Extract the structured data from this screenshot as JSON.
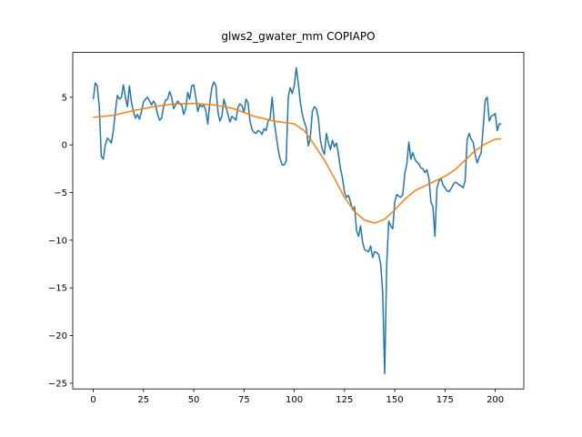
{
  "chart_data": {
    "type": "line",
    "title": "glws2_gwater_mm COPIAPO",
    "xlim": [
      -10.2,
      214.2
    ],
    "ylim": [
      -25.6,
      9.7
    ],
    "xticks": [
      0,
      25,
      50,
      75,
      100,
      125,
      150,
      175,
      200
    ],
    "yticks": [
      {
        "value": -25,
        "label": "−25"
      },
      {
        "value": -20,
        "label": "−20"
      },
      {
        "value": -15,
        "label": "−15"
      },
      {
        "value": -10,
        "label": "−10"
      },
      {
        "value": -5,
        "label": "−5"
      },
      0,
      5
    ],
    "series": [
      {
        "color": "#1f77b4",
        "x": [
          0,
          1,
          2,
          3,
          4,
          5,
          6,
          7,
          8,
          9,
          10,
          11,
          12,
          13,
          14,
          15,
          16,
          17,
          18,
          19,
          20,
          21,
          22,
          23,
          24,
          25,
          26,
          27,
          28,
          29,
          30,
          31,
          32,
          33,
          34,
          35,
          36,
          37,
          38,
          39,
          40,
          41,
          42,
          43,
          44,
          45,
          46,
          47,
          48,
          49,
          50,
          51,
          52,
          53,
          54,
          55,
          56,
          57,
          58,
          59,
          60,
          61,
          62,
          63,
          64,
          65,
          66,
          67,
          68,
          69,
          70,
          71,
          72,
          73,
          74,
          75,
          76,
          77,
          78,
          79,
          80,
          81,
          82,
          83,
          84,
          85,
          86,
          87,
          88,
          89,
          90,
          91,
          92,
          93,
          94,
          95,
          96,
          97,
          98,
          99,
          100,
          101,
          102,
          103,
          104,
          105,
          106,
          107,
          108,
          109,
          110,
          111,
          112,
          113,
          114,
          115,
          116,
          117,
          118,
          119,
          120,
          121,
          122,
          123,
          124,
          125,
          126,
          127,
          128,
          129,
          130,
          131,
          132,
          133,
          134,
          135,
          136,
          137,
          138,
          139,
          140,
          141,
          142,
          143,
          144,
          145,
          146,
          147,
          148,
          149,
          150,
          151,
          152,
          153,
          154,
          155,
          156,
          157,
          158,
          159,
          160,
          161,
          162,
          163,
          164,
          165,
          166,
          167,
          168,
          169,
          170,
          171,
          172,
          173,
          174,
          175,
          176,
          177,
          178,
          179,
          180,
          181,
          182,
          183,
          184,
          185,
          186,
          187,
          188,
          189,
          190,
          191,
          192,
          193,
          194,
          195,
          196,
          197,
          198,
          199,
          200,
          201,
          202,
          203
        ],
        "values": [
          4.8,
          6.5,
          6.2,
          4,
          -1.2,
          -1.5,
          0,
          0.7,
          0.5,
          0.2,
          1.5,
          3.5,
          5.2,
          4.8,
          5,
          6.3,
          5,
          4,
          6.2,
          4.5,
          3.5,
          2.8,
          3.2,
          2.7,
          3.5,
          4.5,
          4.8,
          5,
          4.6,
          4.2,
          4.6,
          4.2,
          3.2,
          2.6,
          2.8,
          4,
          4.7,
          4.8,
          5.6,
          5,
          3.8,
          4.2,
          4.6,
          4.3,
          4.2,
          3.2,
          3.8,
          5.5,
          4.8,
          6.2,
          6.3,
          5,
          3.5,
          4.2,
          4,
          4.2,
          3.6,
          2.2,
          4.5,
          6,
          6.6,
          6.2,
          3.5,
          2.5,
          3,
          4.8,
          4,
          3.2,
          2.4,
          3,
          2.8,
          2.6,
          3.9,
          4.3,
          4.1,
          3.4,
          4.8,
          4.4,
          2.5,
          1.6,
          1.3,
          1.2,
          1.5,
          1.4,
          1.1,
          1.7,
          1.5,
          2.5,
          2.8,
          5,
          2.5,
          1,
          -0.5,
          -1.5,
          -2.1,
          -2.1,
          -1.7,
          5,
          6,
          5.4,
          6.2,
          8.1,
          6.5,
          4.5,
          3.2,
          2.4,
          1.8,
          -0.1,
          0.8,
          3.5,
          4,
          3.8,
          2.8,
          0.5,
          -0.5,
          -1,
          1.2,
          0.2,
          -0.5,
          0.5,
          -0.2,
          0.2,
          -1,
          -2.5,
          -3.5,
          -5,
          -5.5,
          -5.3,
          -6,
          -6.8,
          -6.5,
          -9,
          -9.6,
          -8.5,
          -10.2,
          -11,
          -11.1,
          -11.2,
          -10.6,
          -11.8,
          -11.2,
          -11.3,
          -11.5,
          -12.5,
          -15.5,
          -24,
          -12.5,
          -8,
          -8.5,
          -8.8,
          -6,
          -5.2,
          -5.4,
          -5.5,
          -5.2,
          -3,
          -2,
          0.3,
          -1.5,
          -0.8,
          -1.5,
          -1.8,
          -2,
          -2.4,
          -2.5,
          -2.9,
          -2.6,
          -3.5,
          -6,
          -6.5,
          -9.6,
          -4.5,
          -3.8,
          -3.5,
          -4.2,
          -4.5,
          -4.8,
          -4.9,
          -4.6,
          -4.2,
          -3.9,
          -4,
          -4.2,
          -4.3,
          -4.5,
          -3.8,
          0.5,
          1.2,
          0.6,
          0.3,
          -1,
          -1.9,
          -1.3,
          -0.8,
          1.8,
          4.7,
          5,
          2.5,
          3,
          3.1,
          3.3,
          1.5,
          2.2,
          2.2
        ]
      },
      {
        "color": "#ff7f0e",
        "x": [
          0,
          10,
          20,
          30,
          40,
          50,
          60,
          70,
          80,
          90,
          100,
          105,
          110,
          115,
          120,
          125,
          130,
          135,
          140,
          145,
          150,
          155,
          160,
          165,
          170,
          175,
          180,
          185,
          190,
          195,
          200,
          203
        ],
        "values": [
          2.9,
          3.1,
          3.6,
          4.0,
          4.3,
          4.35,
          4.2,
          3.8,
          3.0,
          2.5,
          2.2,
          1.5,
          0,
          -1.6,
          -3.5,
          -5.5,
          -7,
          -7.9,
          -8.2,
          -7.8,
          -6.8,
          -5.7,
          -4.8,
          -4.3,
          -3.8,
          -3.3,
          -2.6,
          -1.6,
          -0.6,
          0.1,
          0.6,
          0.65
        ]
      }
    ]
  }
}
